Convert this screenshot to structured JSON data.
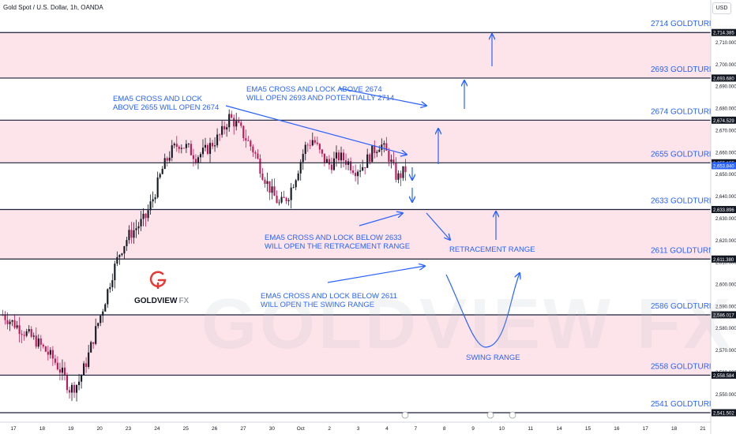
{
  "header": {
    "symbol": "Gold Spot / U.S. Dollar, 1h, OANDA",
    "currency_button": "USD"
  },
  "branding": {
    "logo_letter": "G",
    "logo_text": "GOLDVIEW",
    "logo_suffix": "FX",
    "watermark": "GOLDVIEW FX"
  },
  "colors": {
    "zone_fill": "#fde4ea",
    "level_line": "#1a1f3a",
    "arrow": "#2962ff",
    "annotation_text": "#2962ff",
    "level_label": "#2962ff",
    "candle_up": "#131722",
    "candle_down": "#c2185b",
    "logo_red": "#e53935",
    "axis_text": "#131722"
  },
  "chart_data": {
    "type": "candlestick",
    "instrument": "Gold Spot / U.S. Dollar",
    "timeframe": "1h",
    "source": "OANDA",
    "ylim": [
      2539,
      2722
    ],
    "grid": false,
    "x_axis_labels": [
      "17",
      "18",
      "19",
      "20",
      "23",
      "24",
      "25",
      "26",
      "27",
      "30",
      "Oct",
      "2",
      "3",
      "4",
      "7",
      "8",
      "9",
      "10",
      "11",
      "14",
      "15",
      "16",
      "17",
      "18",
      "21"
    ],
    "y_ticks": [
      2550,
      2560,
      2570,
      2580,
      2590,
      2600,
      2610,
      2620,
      2630,
      2640,
      2650,
      2660,
      2670,
      2680,
      2690,
      2700,
      2710
    ],
    "price_tags": [
      "2,714.385",
      "2,693.680",
      "2,674.529",
      "2,655.155",
      "2,653.840",
      "2,633.896",
      "2,611.380",
      "2,586.017",
      "2,558.584",
      "2,541.502"
    ],
    "levels": [
      {
        "label": "2714 GOLDTURN",
        "value": 2714.385
      },
      {
        "label": "2693 GOLDTURN",
        "value": 2693.68
      },
      {
        "label": "2674 GOLDTURN",
        "value": 2674.529
      },
      {
        "label": "2655 GOLDTURN",
        "value": 2655.155
      },
      {
        "label": "2633 GOLDTURN",
        "value": 2633.896
      },
      {
        "label": "2611 GOLDTURN",
        "value": 2611.38
      },
      {
        "label": "2586 GOLDTURN",
        "value": 2586.017
      },
      {
        "label": "2558 GOLDTURN",
        "value": 2558.584
      },
      {
        "label": "2541 GOLDTURN",
        "value": 2541.502
      }
    ],
    "shaded_zones": [
      [
        2693.68,
        2714.385
      ],
      [
        2655.155,
        2674.529
      ],
      [
        2611.38,
        2633.896
      ],
      [
        2558.584,
        2586.017
      ]
    ],
    "annotations": [
      {
        "lines": [
          "EMA5 CROSS AND LOCK",
          "ABOVE 2655 WILL OPEN 2674"
        ]
      },
      {
        "lines": [
          "EMA5 CROSS AND LOCK ABOVE 2674",
          "WILL OPEN 2693 AND POTENTIALLY 2714"
        ]
      },
      {
        "lines": [
          "EMA5 CROSS AND LOCK BELOW 2633",
          "WILL OPEN THE RETRACEMENT RANGE"
        ]
      },
      {
        "lines": [
          "RETRACEMENT RANGE"
        ]
      },
      {
        "lines": [
          "EMA5 CROSS AND LOCK BELOW 2611",
          "WILL OPEN THE SWING RANGE"
        ]
      },
      {
        "lines": [
          "SWING RANGE"
        ]
      }
    ],
    "price_path": [
      2586,
      2583,
      2580,
      2577,
      2574,
      2570,
      2566,
      2560,
      2552,
      2555,
      2565,
      2578,
      2590,
      2604,
      2615,
      2622,
      2626,
      2630,
      2640,
      2652,
      2660,
      2664,
      2662,
      2658,
      2660,
      2664,
      2668,
      2676,
      2672,
      2666,
      2660,
      2650,
      2642,
      2636,
      2640,
      2650,
      2662,
      2666,
      2658,
      2654,
      2658,
      2656,
      2652,
      2654,
      2660,
      2664,
      2658,
      2648,
      2652
    ]
  }
}
